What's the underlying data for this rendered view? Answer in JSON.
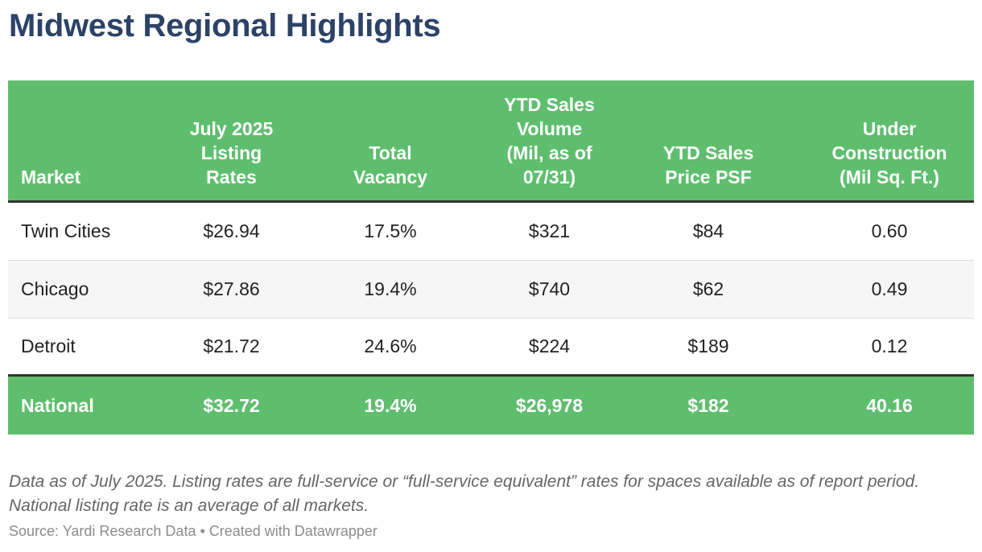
{
  "title": "Midwest Regional Highlights",
  "chart_data": {
    "type": "table",
    "title": "Midwest Regional Highlights",
    "columns": [
      [
        "Market"
      ],
      [
        "July 2025",
        "Listing",
        "Rates"
      ],
      [
        "Total",
        "Vacancy"
      ],
      [
        "YTD Sales",
        "Volume",
        "(Mil, as of",
        "07/31)"
      ],
      [
        "YTD Sales",
        "Price PSF"
      ],
      [
        "Under",
        "Construction",
        "(Mil Sq. Ft.)"
      ]
    ],
    "rows": [
      [
        "Twin Cities",
        "$26.94",
        "17.5%",
        "$321",
        "$84",
        "0.60"
      ],
      [
        "Chicago",
        "$27.86",
        "19.4%",
        "$740",
        "$62",
        "0.49"
      ],
      [
        "Detroit",
        "$21.72",
        "24.6%",
        "$224",
        "$189",
        "0.12"
      ]
    ],
    "total_row": [
      "National",
      "$32.72",
      "19.4%",
      "$26,978",
      "$182",
      "40.16"
    ]
  },
  "notes": "Data as of July 2025. Listing rates are full-service or “full-service equivalent” rates for spaces available as of report period. National listing rate is an average of all markets.",
  "source": "Source: Yardi Research Data • Created with Datawrapper",
  "colors": {
    "title": "#2c4266",
    "header_bg": "#5fbe6e",
    "total_bg": "#5fbe6e",
    "divider": "#333333"
  }
}
